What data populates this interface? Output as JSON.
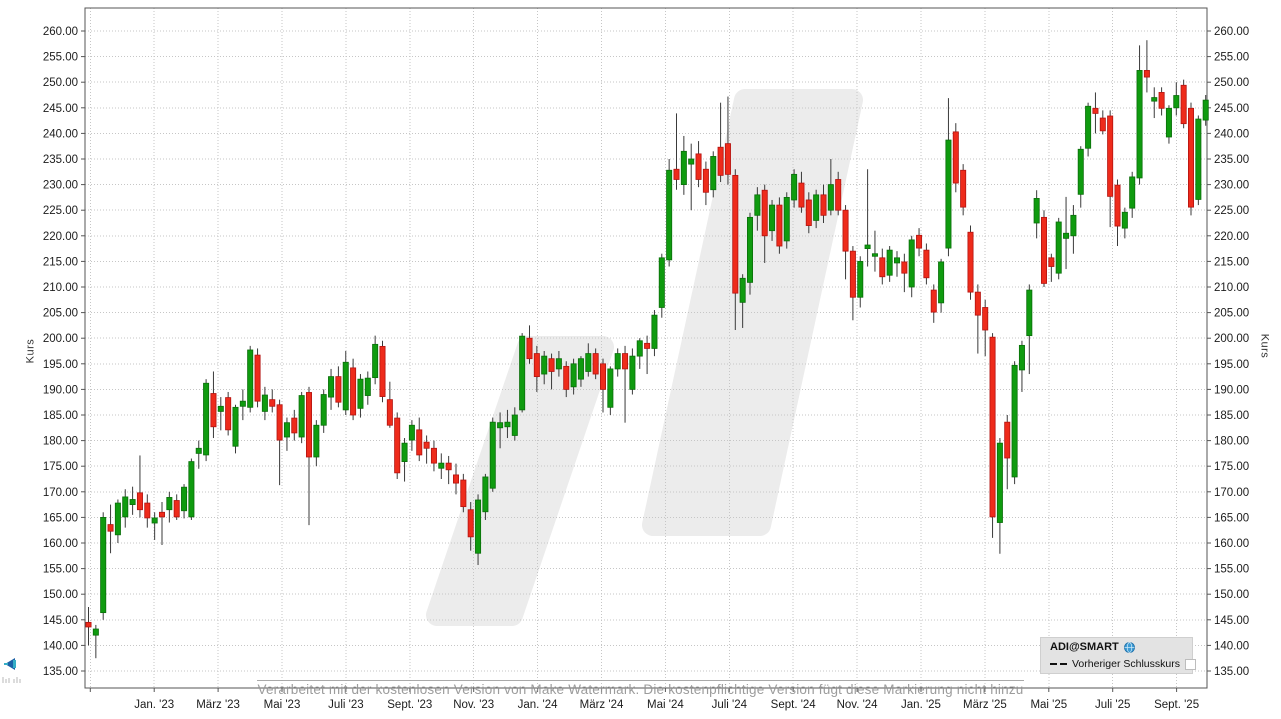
{
  "legend": {
    "title": "ADI@SMART",
    "items": [
      {
        "label": "Vorheriger Schlusskurs",
        "symbol": "dashed-line"
      }
    ]
  },
  "watermark": {
    "bottom_text": "Verarbeitet mit der kostenlosen Version von Make Watermark. Die kostenpflichtige Version fügt diese Markierung nicht hinzu",
    "shape_color": "#ececec"
  },
  "axes": {
    "y_label_left": "Kurs",
    "y_label_right": "Kurs"
  },
  "colors": {
    "up": "#0f9b0f",
    "up_border": "#0a6e0a",
    "down": "#ee2b1b",
    "down_border": "#b31310",
    "wick": "#3a3a3a",
    "grid": "#c6c6c6",
    "axis_border": "#555555",
    "tick_text": "#1c1c1c"
  },
  "chart_data": {
    "type": "candlestick",
    "title": "",
    "ylabel": "Kurs",
    "y_min": 135,
    "y_max": 260,
    "y_step": 5,
    "grid": "dotted",
    "legend_position": "bottom-right",
    "y_tick_labels": [
      "260.00",
      "255.00",
      "250.00",
      "245.00",
      "240.00",
      "235.00",
      "230.00",
      "225.00",
      "220.00",
      "215.00",
      "210.00",
      "205.00",
      "200.00",
      "195.00",
      "190.00",
      "185.00",
      "180.00",
      "175.00",
      "170.00",
      "165.00",
      "160.00",
      "155.00",
      "150.00",
      "145.00",
      "140.00",
      "135.00"
    ],
    "x_tick_labels": [
      "Jan. '23",
      "März '23",
      "Mai '23",
      "Juli '23",
      "Sept. '23",
      "Nov. '23",
      "Jan. '24",
      "März '24",
      "Mai '24",
      "Juli '24",
      "Sept. '24",
      "Nov. '24",
      "Jan. '25",
      "März '25",
      "Mai '25",
      "Juli '25",
      "Sept. '25"
    ],
    "ohlc_note": "weekly candles, values in order [open, high, low, close]",
    "candles": [
      [
        144.5,
        147.5,
        140.0,
        143.6
      ],
      [
        142.0,
        144.0,
        137.5,
        143.2
      ],
      [
        146.4,
        166.0,
        145.0,
        165.0
      ],
      [
        163.6,
        167.5,
        158.0,
        162.3
      ],
      [
        161.6,
        168.5,
        160.0,
        167.8
      ],
      [
        165.1,
        170.5,
        163.0,
        169.0
      ],
      [
        167.5,
        171.0,
        165.5,
        168.5
      ],
      [
        169.8,
        177.1,
        165.0,
        166.5
      ],
      [
        167.8,
        169.5,
        163.0,
        164.9
      ],
      [
        163.9,
        166.0,
        160.6,
        164.9
      ],
      [
        166.0,
        168.0,
        159.6,
        165.1
      ],
      [
        166.5,
        170.0,
        164.0,
        168.9
      ],
      [
        168.3,
        169.5,
        164.5,
        165.1
      ],
      [
        166.3,
        171.5,
        164.8,
        170.9
      ],
      [
        165.1,
        176.5,
        164.5,
        175.9
      ],
      [
        177.5,
        180.0,
        174.5,
        178.5
      ],
      [
        177.2,
        192.0,
        176.0,
        191.2
      ],
      [
        189.2,
        193.5,
        180.5,
        182.7
      ],
      [
        185.7,
        188.5,
        182.0,
        186.7
      ],
      [
        188.4,
        189.5,
        181.0,
        182.1
      ],
      [
        178.9,
        187.0,
        177.5,
        186.5
      ],
      [
        186.7,
        190.0,
        184.0,
        187.7
      ],
      [
        186.5,
        198.5,
        185.5,
        197.7
      ],
      [
        196.7,
        198.0,
        186.5,
        187.7
      ],
      [
        185.7,
        190.5,
        184.0,
        188.9
      ],
      [
        188.0,
        190.0,
        185.5,
        186.7
      ],
      [
        187.0,
        188.0,
        171.3,
        180.1
      ],
      [
        180.7,
        184.5,
        178.0,
        183.5
      ],
      [
        184.4,
        186.0,
        180.0,
        181.5
      ],
      [
        180.7,
        189.5,
        179.5,
        188.8
      ],
      [
        189.4,
        190.5,
        163.5,
        176.8
      ],
      [
        176.8,
        184.0,
        175.0,
        183.0
      ],
      [
        183.0,
        190.0,
        181.5,
        189.0
      ],
      [
        188.5,
        194.0,
        186.0,
        192.5
      ],
      [
        192.5,
        194.5,
        186.5,
        187.5
      ],
      [
        186.0,
        197.5,
        185.0,
        195.3
      ],
      [
        194.2,
        196.0,
        184.0,
        185.0
      ],
      [
        186.3,
        193.0,
        184.5,
        192.0
      ],
      [
        188.8,
        193.5,
        187.0,
        192.2
      ],
      [
        192.3,
        200.5,
        191.0,
        198.8
      ],
      [
        198.4,
        199.5,
        187.5,
        188.6
      ],
      [
        188.0,
        191.5,
        182.5,
        183.0
      ],
      [
        184.4,
        185.5,
        172.5,
        173.7
      ],
      [
        175.9,
        180.5,
        172.0,
        179.5
      ],
      [
        180.1,
        184.0,
        178.0,
        183.0
      ],
      [
        182.1,
        184.5,
        176.0,
        177.2
      ],
      [
        179.7,
        181.0,
        175.5,
        178.5
      ],
      [
        178.5,
        180.0,
        174.0,
        175.6
      ],
      [
        174.6,
        177.5,
        172.5,
        175.6
      ],
      [
        175.6,
        177.0,
        171.5,
        174.3
      ],
      [
        173.3,
        175.5,
        169.5,
        171.7
      ],
      [
        172.3,
        173.5,
        166.0,
        167.1
      ],
      [
        166.5,
        168.0,
        158.5,
        161.2
      ],
      [
        158.0,
        169.5,
        155.7,
        168.4
      ],
      [
        166.1,
        173.5,
        164.5,
        172.9
      ],
      [
        170.7,
        184.5,
        170.0,
        183.6
      ],
      [
        182.5,
        185.5,
        178.5,
        183.5
      ],
      [
        182.7,
        186.0,
        180.5,
        183.6
      ],
      [
        181.0,
        186.5,
        180.0,
        185.0
      ],
      [
        186.0,
        201.0,
        185.5,
        200.4
      ],
      [
        200.0,
        202.5,
        195.0,
        196.0
      ],
      [
        197.0,
        198.5,
        189.5,
        192.5
      ],
      [
        193.0,
        197.5,
        191.0,
        196.5
      ],
      [
        196.0,
        197.0,
        190.0,
        193.5
      ],
      [
        194.0,
        197.5,
        192.5,
        196.0
      ],
      [
        194.5,
        195.5,
        188.5,
        190.0
      ],
      [
        190.5,
        196.0,
        189.0,
        195.0
      ],
      [
        192.0,
        196.5,
        190.5,
        196.0
      ],
      [
        193.5,
        199.0,
        192.5,
        197.0
      ],
      [
        197.0,
        198.0,
        192.0,
        193.0
      ],
      [
        195.0,
        196.0,
        185.5,
        190.0
      ],
      [
        186.5,
        194.5,
        185.0,
        194.0
      ],
      [
        194.0,
        198.0,
        192.5,
        197.0
      ],
      [
        197.0,
        198.5,
        183.5,
        194.0
      ],
      [
        190.0,
        198.0,
        189.0,
        196.5
      ],
      [
        196.5,
        200.0,
        194.0,
        199.5
      ],
      [
        199.0,
        200.5,
        193.0,
        198.0
      ],
      [
        198.0,
        205.5,
        196.5,
        204.5
      ],
      [
        206.0,
        216.5,
        204.0,
        215.7
      ],
      [
        215.3,
        235.0,
        214.0,
        232.8
      ],
      [
        233.0,
        243.9,
        229.0,
        231.0
      ],
      [
        230.0,
        239.5,
        228.0,
        236.5
      ],
      [
        234.0,
        238.0,
        225.0,
        235.0
      ],
      [
        236.0,
        238.5,
        229.5,
        231.0
      ],
      [
        233.0,
        234.5,
        226.0,
        228.5
      ],
      [
        229.0,
        236.5,
        227.5,
        235.5
      ],
      [
        237.3,
        246.0,
        230.5,
        231.8
      ],
      [
        238.0,
        247.2,
        230.0,
        232.0
      ],
      [
        231.8,
        233.0,
        201.6,
        208.8
      ],
      [
        207.0,
        212.5,
        202.0,
        211.7
      ],
      [
        210.9,
        224.5,
        208.5,
        223.6
      ],
      [
        224.0,
        229.5,
        221.0,
        228.0
      ],
      [
        228.9,
        230.0,
        214.7,
        220.0
      ],
      [
        221.0,
        227.0,
        219.0,
        226.0
      ],
      [
        226.0,
        227.5,
        216.5,
        218.0
      ],
      [
        219.0,
        228.5,
        217.5,
        227.5
      ],
      [
        227.0,
        233.0,
        225.5,
        232.0
      ],
      [
        230.3,
        232.5,
        224.5,
        225.6
      ],
      [
        227.0,
        228.5,
        220.5,
        222.0
      ],
      [
        223.0,
        229.0,
        221.5,
        228.0
      ],
      [
        228.0,
        230.0,
        222.5,
        224.0
      ],
      [
        225.0,
        235.0,
        224.0,
        230.0
      ],
      [
        231.0,
        232.5,
        224.0,
        225.0
      ],
      [
        225.0,
        226.0,
        211.5,
        217.0
      ],
      [
        217.0,
        218.0,
        203.5,
        208.0
      ],
      [
        208.0,
        216.0,
        206.0,
        215.0
      ],
      [
        217.5,
        233.0,
        214.0,
        218.2
      ],
      [
        216.0,
        221.0,
        213.0,
        216.5
      ],
      [
        215.7,
        217.5,
        210.5,
        212.0
      ],
      [
        212.3,
        218.0,
        211.0,
        217.2
      ],
      [
        214.7,
        217.0,
        212.0,
        215.7
      ],
      [
        214.9,
        216.5,
        209.0,
        212.7
      ],
      [
        210.0,
        220.0,
        208.0,
        219.2
      ],
      [
        220.1,
        221.5,
        216.0,
        217.6
      ],
      [
        217.2,
        218.5,
        210.5,
        211.8
      ],
      [
        209.4,
        210.5,
        203.0,
        205.1
      ],
      [
        206.9,
        215.5,
        205.0,
        214.9
      ],
      [
        217.6,
        246.9,
        216.0,
        238.7
      ],
      [
        240.3,
        242.0,
        228.5,
        230.3
      ],
      [
        232.8,
        234.0,
        224.0,
        225.6
      ],
      [
        220.7,
        222.0,
        207.5,
        209.0
      ],
      [
        209.0,
        210.5,
        197.0,
        204.5
      ],
      [
        206.0,
        207.5,
        196.5,
        201.6
      ],
      [
        200.2,
        201.0,
        161.0,
        165.1
      ],
      [
        164.0,
        180.5,
        157.9,
        179.5
      ],
      [
        183.6,
        185.0,
        170.5,
        176.6
      ],
      [
        172.9,
        195.5,
        171.5,
        194.7
      ],
      [
        193.8,
        199.5,
        189.5,
        198.6
      ],
      [
        200.5,
        210.5,
        193.0,
        209.4
      ],
      [
        222.5,
        228.9,
        219.5,
        227.3
      ],
      [
        223.6,
        225.0,
        210.0,
        210.7
      ],
      [
        215.7,
        216.5,
        211.0,
        214.0
      ],
      [
        212.7,
        223.5,
        211.5,
        222.7
      ],
      [
        219.5,
        227.6,
        213.5,
        220.5
      ],
      [
        220.0,
        226.0,
        216.5,
        224.0
      ],
      [
        228.1,
        237.5,
        225.5,
        236.9
      ],
      [
        237.1,
        246.0,
        235.5,
        245.3
      ],
      [
        244.9,
        248.0,
        240.0,
        243.9
      ],
      [
        243.0,
        244.5,
        239.8,
        240.5
      ],
      [
        243.4,
        244.5,
        221.7,
        227.7
      ],
      [
        229.9,
        231.0,
        218.0,
        221.9
      ],
      [
        221.5,
        225.5,
        219.5,
        224.6
      ],
      [
        225.4,
        232.5,
        223.5,
        231.5
      ],
      [
        231.3,
        257.2,
        230.0,
        252.3
      ],
      [
        252.3,
        258.2,
        248.0,
        251.0
      ],
      [
        246.3,
        249.0,
        243.0,
        247.0
      ],
      [
        248.0,
        249.0,
        243.5,
        244.9
      ],
      [
        239.3,
        245.5,
        238.0,
        244.9
      ],
      [
        245.0,
        250.0,
        243.5,
        247.4
      ],
      [
        249.4,
        250.5,
        241.0,
        241.9
      ],
      [
        244.9,
        246.0,
        224.0,
        225.6
      ],
      [
        227.1,
        243.5,
        226.0,
        242.8
      ],
      [
        242.6,
        247.5,
        241.5,
        246.5
      ]
    ]
  }
}
